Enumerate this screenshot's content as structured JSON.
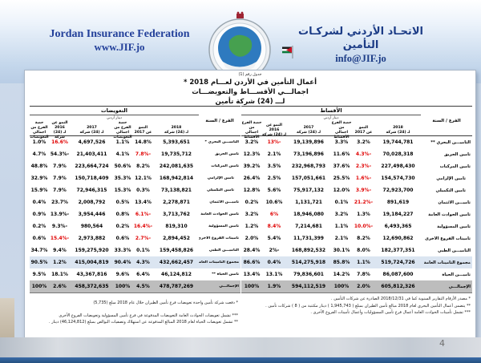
{
  "header": {
    "org_name_en": "Jordan Insurance Federation",
    "website": "www.JIF.jo",
    "org_name_ar": "الاتحـاد الأردني لشركـات التأمين",
    "email": "info@JIF.jo"
  },
  "icons": {
    "logo": "jordan-insurance-federation-emblem",
    "flag": "jordan-flag"
  },
  "colors": {
    "header_blue": "#23409a",
    "bottom_bar_blue": "#2b5d99",
    "negative_red": "#e00000",
    "subtotal_row_bg": "#dbe5f1",
    "total_row_bg": "#bdbdbd"
  },
  "document": {
    "table_label": "جدول رقم (1)",
    "title_line1": "أعمال التأمين في الأردن لعـــام 2018 *",
    "title_line2": "اجمالـــي الأقســـاط والتعويضـــات",
    "title_line3": "لـــ (24) شركة تأمين",
    "page_number": "4"
  },
  "tables": {
    "claims": {
      "title": "التعويضات",
      "currency_note": "دينار أردني",
      "branch_header": "الفرع / السنة",
      "col_headers": [
        [
          "2018",
          "لـ (24) شركة"
        ],
        [
          "النمو",
          "عن 2017"
        ],
        [
          "حصة الفرع من",
          "اجمالي التعويضات"
        ],
        [
          "2017",
          "لـ (24) شركة"
        ],
        [
          "النمو عن 2016",
          "لـ (24) شركة"
        ],
        [
          "حصة الفرع من",
          "اجمالي التعويضات"
        ]
      ],
      "rows": [
        {
          "name": "التأميـــن البحري *",
          "cells": [
            "5,393,651",
            "14.8%",
            "1.1%",
            "4,697,526",
            "16.6%",
            "1.0%"
          ],
          "red": [
            4
          ]
        },
        {
          "name": "تأمين الحريق",
          "cells": [
            "19,735,712",
            "7.8%-",
            "4.1%",
            "21,403,411",
            "54.3%-",
            "4.7%"
          ],
          "red": [
            1
          ]
        },
        {
          "name": "تأمين المركبات",
          "cells": [
            "242,081,635",
            "8.2%",
            "50.6%",
            "223,664,724",
            "7.9%",
            "48.8%"
          ]
        },
        {
          "name": "تأمين الإلزامي",
          "indent": true,
          "cells": [
            "168,942,814",
            "12.1%",
            "35.3%",
            "150,718,409",
            "7.9%",
            "32.9%"
          ]
        },
        {
          "name": "تأمين التكميلي",
          "indent": true,
          "cells": [
            "73,138,821",
            "0.3%",
            "15.3%",
            "72,946,315",
            "7.9%",
            "15.9%"
          ]
        },
        {
          "name": "تأميـــن الائتمان",
          "cells": [
            "2,278,871",
            "13.4%",
            "0.5%",
            "2,008,792",
            "23.7%",
            "0.4%"
          ]
        },
        {
          "name": "تأمين الحوادث العامة",
          "cells": [
            "3,713,762",
            "6.1%-",
            "0.8%",
            "3,954,446",
            "13.9%-",
            "0.9%"
          ],
          "red": [
            1
          ]
        },
        {
          "name": "تأمين المسؤولية",
          "cells": [
            "819,310",
            "16.4%-",
            "0.2%",
            "980,564",
            "9.3%-",
            "0.2%"
          ],
          "red": [
            1
          ]
        },
        {
          "name": "تأمينات الفروع الأخرى",
          "cells": [
            "2,894,452",
            "2.7%-",
            "0.6%",
            "2,973,882",
            "15.4%-",
            "0.6%"
          ],
          "red": [
            1,
            4
          ]
        },
        {
          "name": "التأميـــن الطبي",
          "cells": [
            "159,458,826",
            "0.1%",
            "33.3%",
            "159,275,920",
            "9.4%",
            "34.7%"
          ]
        },
        {
          "name": "مجموع التأمينات العامة",
          "style": "subtotal",
          "cells": [
            "432,662,457",
            "4.3%",
            "90.4%",
            "415,004,819",
            "1.2%",
            "90.5%"
          ]
        },
        {
          "name": "تأمين الحياة **",
          "cells": [
            "46,124,812",
            "6.4%",
            "9.6%",
            "43,367,816",
            "18.1%",
            "9.5%"
          ]
        },
        {
          "name": "الإجمالـــي",
          "style": "total",
          "cells": [
            "478,787,269",
            "4.5%",
            "100%",
            "458,372,635",
            "2.6%",
            "100%"
          ]
        }
      ]
    },
    "premiums": {
      "title": "الأقساط",
      "currency_note": "دينار أردني",
      "branch_header": "الفرع / السنة",
      "col_headers": [
        [
          "2018",
          "لـ (24) شركة"
        ],
        [
          "النمو",
          "عن 2017"
        ],
        [
          "حصة الفرع من",
          "اجمالي الأقساط"
        ],
        [
          "2017",
          "لـ (24) شركة"
        ],
        [
          "النمو عن 2016",
          "لـ (24) شركة"
        ],
        [
          "حصة الفرع من",
          "اجمالي الأقساط"
        ]
      ],
      "rows": [
        {
          "name": "التأميـــن البحري **",
          "cells": [
            "19,744,781",
            "3.2%",
            "3.3%",
            "19,139,896",
            "13%-",
            "3.2%"
          ],
          "red": [
            4
          ]
        },
        {
          "name": "تأمين الحريق",
          "cells": [
            "70,028,318",
            "4.3%-",
            "11.6%",
            "73,196,896",
            "2.1%",
            "12.3%"
          ],
          "red": [
            1
          ]
        },
        {
          "name": "تأمين المركبات",
          "cells": [
            "227,498,430",
            "2.3%-",
            "37.6%",
            "232,968,793",
            "3.5%",
            "39.2%"
          ],
          "red": [
            1
          ]
        },
        {
          "name": "تأمين الإلزامي",
          "indent": true,
          "cells": [
            "154,574,730",
            "1.6%-",
            "25.5%",
            "157,051,661",
            "2.5%",
            "26.4%"
          ],
          "red": [
            1
          ]
        },
        {
          "name": "تأمين التكميلي",
          "indent": true,
          "cells": [
            "72,923,700",
            "3.9%-",
            "12.0%",
            "75,917,132",
            "5.6%",
            "12.8%"
          ],
          "red": [
            1
          ]
        },
        {
          "name": "تأميـــن الائتمان",
          "cells": [
            "891,619",
            "21.2%-",
            "0.1%",
            "1,131,721",
            "10.6%",
            "0.2%"
          ],
          "red": [
            1
          ]
        },
        {
          "name": "تأمين الحوادث العامة",
          "cells": [
            "19,184,227",
            "1.3%",
            "3.2%",
            "18,946,080",
            "6%",
            "3.2%"
          ],
          "red": [
            4
          ]
        },
        {
          "name": "تأمين المسؤولية",
          "cells": [
            "6,493,365",
            "10.0%-",
            "1.1%",
            "7,214,681",
            "8.4%",
            "1.2%"
          ],
          "red": [
            1,
            4
          ]
        },
        {
          "name": "تأمينات الفروع الأخرى",
          "cells": [
            "12,690,862",
            "8.2%",
            "2.1%",
            "11,731,399",
            "5.4%",
            "2.0%"
          ]
        },
        {
          "name": "التأميـــن الطبي",
          "cells": [
            "182,377,351",
            "8.0%",
            "30.1%",
            "168,892,532",
            "2%-",
            "28.4%"
          ]
        },
        {
          "name": "مجموع التأمينات العامة",
          "style": "subtotal",
          "cells": [
            "519,724,726",
            "1.1%",
            "85.8%",
            "514,275,918",
            "0.4%",
            "86.6%"
          ]
        },
        {
          "name": "تأميـــن الحياة",
          "cells": [
            "86,087,600",
            "7.8%",
            "14.2%",
            "79,836,601",
            "13.1%",
            "13.4%"
          ]
        },
        {
          "name": "الإجمالـــي",
          "style": "total",
          "cells": [
            "605,812,326",
            "2.0%",
            "100%",
            "594,112,519",
            "1.9%",
            "100%"
          ]
        }
      ]
    }
  },
  "footnotes": {
    "claims": [
      "* دفعت شركة تأمين واحدة تعويضات فرع تأمين الطيران خلال عام 2018 مبلغ (5,735)",
      "*** تشمل تعويضات الحوادث العامة التعويضات المدفوعة في فرع تأمين المسؤولية وتعويضات الفروع الأخرى",
      "** تشمل تعويضات الحياة لعام 2018 المبالغ المدفوعة عن استهلاك وتصفيات البوالص بمبلغ (46,124,812) دينار ."
    ],
    "premiums": [
      "* مصدر الأرقام التقارير السنوية كما في 2018/12/31 الصادرة عن شركات التأمين .",
      "** يتضمن أعمال التأمين البحري لعام 2018 مبالغ تأمين الطيران بمبلغ ( 1,945,743 ) دينار مكتتبة من ( 8 ) شركات تأمين .",
      "*** تشمل تأمينات الحوادث العامة أعمال فرع تأمين المسؤوليات وأعمال تأمينات الفروع الأخرى ."
    ]
  }
}
